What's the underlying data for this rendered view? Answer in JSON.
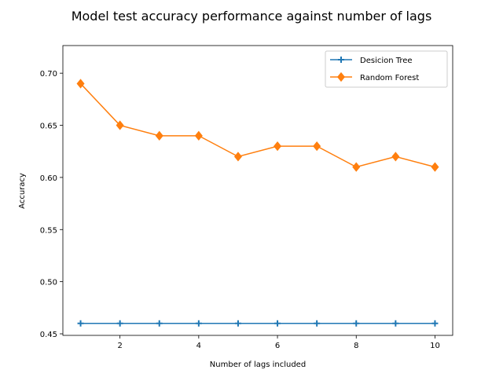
{
  "chart_data": {
    "type": "line",
    "title": "Model test accuracy performance against number of lags",
    "xlabel": "Number of lags included",
    "ylabel": "Accuracy",
    "x": [
      1,
      2,
      3,
      4,
      5,
      6,
      7,
      8,
      9,
      10
    ],
    "xlim": [
      0.55,
      10.45
    ],
    "ylim": [
      0.4485,
      0.7265
    ],
    "xticks": [
      2,
      4,
      6,
      8,
      10
    ],
    "yticks": [
      0.45,
      0.5,
      0.55,
      0.6,
      0.65,
      0.7
    ],
    "ytick_labels": [
      "0.45",
      "0.50",
      "0.55",
      "0.60",
      "0.65",
      "0.70"
    ],
    "xtick_labels": [
      "2",
      "4",
      "6",
      "8",
      "10"
    ],
    "legend_position": "top-right",
    "grid": false,
    "series": [
      {
        "name": "Desicion Tree",
        "values": [
          0.46,
          0.46,
          0.46,
          0.46,
          0.46,
          0.46,
          0.46,
          0.46,
          0.46,
          0.46
        ],
        "color": "#1f77b4",
        "marker": "plus"
      },
      {
        "name": "Random Forest",
        "values": [
          0.69,
          0.65,
          0.64,
          0.64,
          0.62,
          0.63,
          0.63,
          0.61,
          0.62,
          0.61
        ],
        "color": "#ff7f0e",
        "marker": "diamond"
      }
    ]
  }
}
